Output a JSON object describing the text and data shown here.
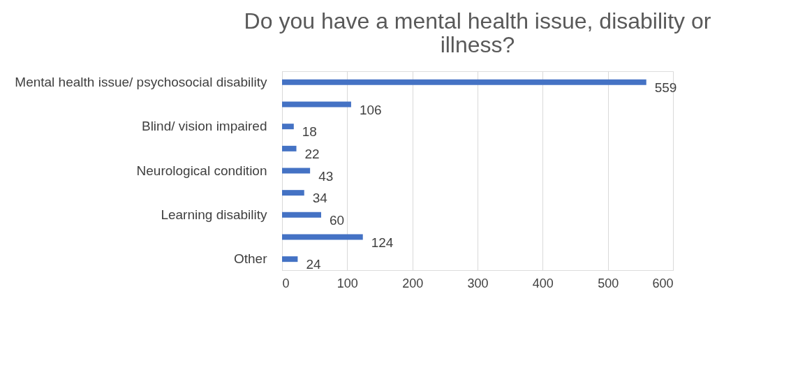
{
  "chart_data": {
    "type": "bar",
    "orientation": "horizontal",
    "title": "Do you have a mental health issue, disability or illness?",
    "categories": [
      "Mental health issue/ psychosocial disability",
      null,
      "Blind/ vision impaired",
      null,
      "Neurological condition",
      null,
      "Learning disability",
      null,
      "Other"
    ],
    "values": [
      559,
      106,
      18,
      22,
      43,
      34,
      60,
      124,
      24
    ],
    "color": "#4472c4",
    "xlim": [
      0,
      600
    ],
    "xticks": [
      0,
      100,
      200,
      300,
      400,
      500,
      600
    ],
    "grid": "x",
    "data_labels": true
  }
}
